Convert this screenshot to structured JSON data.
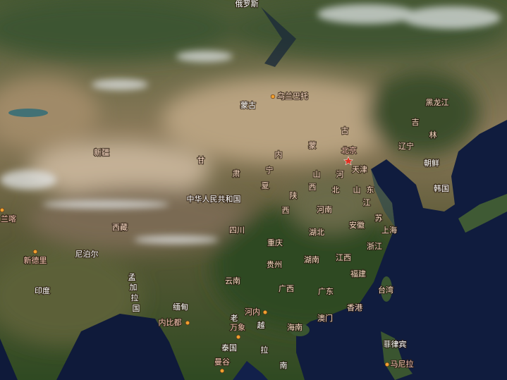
{
  "map": {
    "labels": [
      {
        "text": "俄罗斯",
        "color": "#ffffff"
      },
      {
        "text": "乌兰巴托",
        "color": "#f6d7c2"
      },
      {
        "text": "蒙古",
        "color": "#ffffff"
      },
      {
        "text": "黑龙江",
        "color": "#f6d7c2"
      },
      {
        "text": "吉",
        "color": "#f6d7c2"
      },
      {
        "text": "林",
        "color": "#f6d7c2"
      },
      {
        "text": "辽宁",
        "color": "#f6d7c2"
      },
      {
        "text": "朝鲜",
        "color": "#ffffff"
      },
      {
        "text": "韩国",
        "color": "#ffffff"
      },
      {
        "text": "新疆",
        "color": "#f6d7c2"
      },
      {
        "text": "古",
        "color": "#f6d7c2"
      },
      {
        "text": "蒙",
        "color": "#f6d7c2"
      },
      {
        "text": "内",
        "color": "#f6d7c2"
      },
      {
        "text": "北京",
        "color": "#f6c3b4"
      },
      {
        "text": "天津",
        "color": "#f6d7c2"
      },
      {
        "text": "甘",
        "color": "#f6d7c2"
      },
      {
        "text": "肃",
        "color": "#f6d7c2"
      },
      {
        "text": "宁",
        "color": "#f6d7c2"
      },
      {
        "text": "夏",
        "color": "#f6d7c2"
      },
      {
        "text": "山",
        "color": "#f6d7c2"
      },
      {
        "text": "西",
        "color": "#f6d7c2"
      },
      {
        "text": "河",
        "color": "#f6d7c2"
      },
      {
        "text": "北",
        "color": "#f6d7c2"
      },
      {
        "text": "山",
        "color": "#f6d7c2"
      },
      {
        "text": "东",
        "color": "#f6d7c2"
      },
      {
        "text": "陕",
        "color": "#f6d7c2"
      },
      {
        "text": "西",
        "color": "#f6d7c2"
      },
      {
        "text": "中华人民共和国",
        "color": "#ffffff"
      },
      {
        "text": "河南",
        "color": "#f6d7c2"
      },
      {
        "text": "江",
        "color": "#f6d7c2"
      },
      {
        "text": "苏",
        "color": "#f6d7c2"
      },
      {
        "text": "西藏",
        "color": "#f6d7c2"
      },
      {
        "text": "四川",
        "color": "#f6d7c2"
      },
      {
        "text": "湖北",
        "color": "#f6d7c2"
      },
      {
        "text": "安徽",
        "color": "#f6d7c2"
      },
      {
        "text": "上海",
        "color": "#f6d7c2"
      },
      {
        "text": "重庆",
        "color": "#f6d7c2"
      },
      {
        "text": "浙江",
        "color": "#f6d7c2"
      },
      {
        "text": "尼泊尔",
        "color": "#ffffff"
      },
      {
        "text": "新德里",
        "color": "#f6c3b4"
      },
      {
        "text": "贵州",
        "color": "#f6d7c2"
      },
      {
        "text": "湖南",
        "color": "#f6d7c2"
      },
      {
        "text": "江西",
        "color": "#f6d7c2"
      },
      {
        "text": "孟",
        "color": "#ffffff"
      },
      {
        "text": "加",
        "color": "#ffffff"
      },
      {
        "text": "拉",
        "color": "#ffffff"
      },
      {
        "text": "国",
        "color": "#ffffff"
      },
      {
        "text": "福建",
        "color": "#f6d7c2"
      },
      {
        "text": "印度",
        "color": "#ffffff"
      },
      {
        "text": "云南",
        "color": "#f6d7c2"
      },
      {
        "text": "广西",
        "color": "#f6d7c2"
      },
      {
        "text": "广东",
        "color": "#f6d7c2"
      },
      {
        "text": "台湾",
        "color": "#f6d7c2"
      },
      {
        "text": "缅甸",
        "color": "#ffffff"
      },
      {
        "text": "香港",
        "color": "#f6d7c2"
      },
      {
        "text": "河内",
        "color": "#f6c3b4"
      },
      {
        "text": "老",
        "color": "#ffffff"
      },
      {
        "text": "澳门",
        "color": "#f6d7c2"
      },
      {
        "text": "内比都",
        "color": "#f6c3b4"
      },
      {
        "text": "万象",
        "color": "#f6c3b4"
      },
      {
        "text": "越",
        "color": "#ffffff"
      },
      {
        "text": "海南",
        "color": "#f6d7c2"
      },
      {
        "text": "泰国",
        "color": "#ffffff"
      },
      {
        "text": "拉",
        "color": "#ffffff"
      },
      {
        "text": "菲律宾",
        "color": "#ffffff"
      },
      {
        "text": "曼谷",
        "color": "#f6c3b4"
      },
      {
        "text": "南",
        "color": "#ffffff"
      },
      {
        "text": "马尼拉",
        "color": "#f6c3b4"
      },
      {
        "text": "兰喀",
        "color": "#f6c3b4"
      }
    ]
  }
}
